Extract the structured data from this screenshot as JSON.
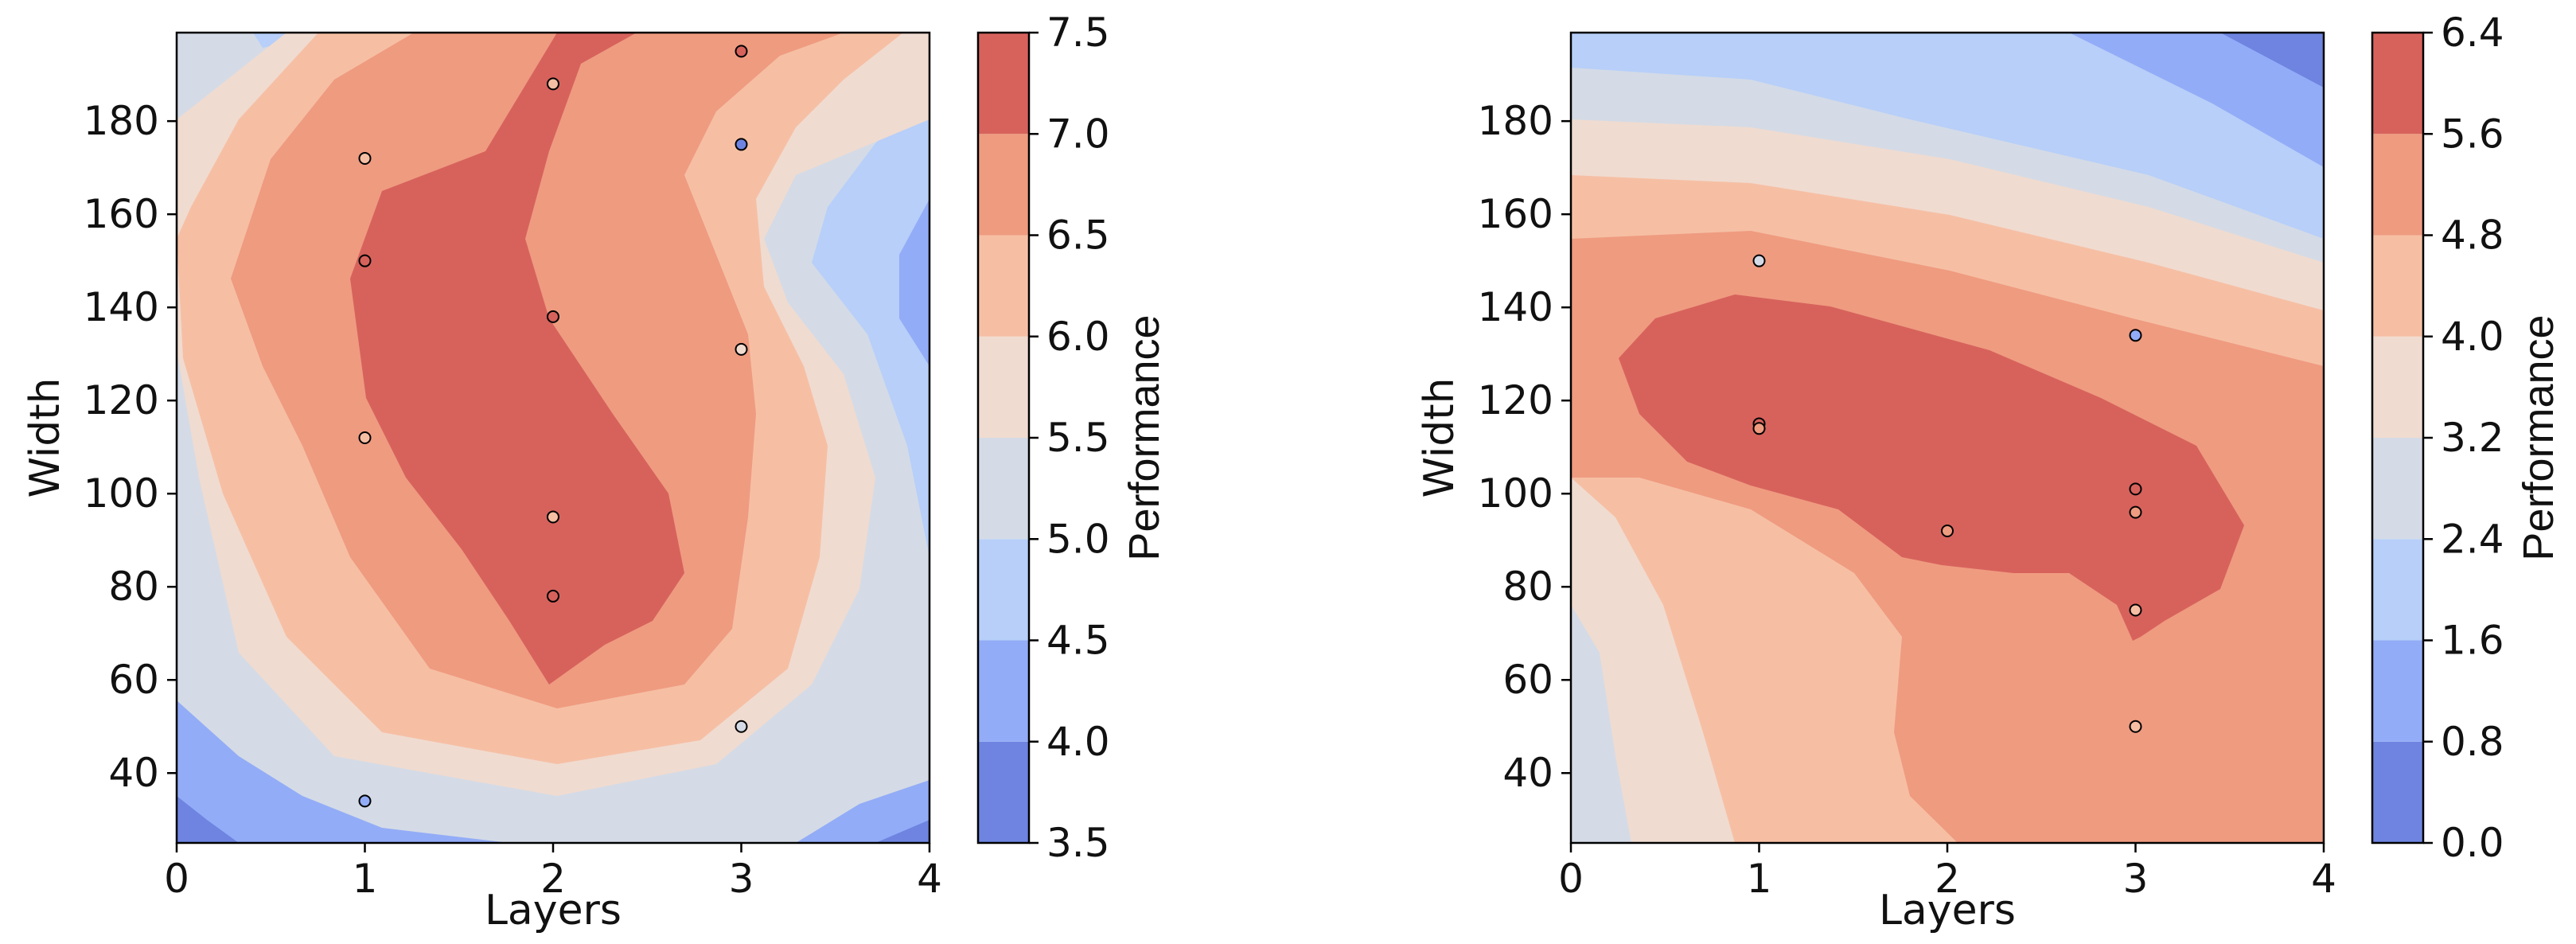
{
  "chart_data": [
    {
      "type": "contour",
      "xlabel": "Layers",
      "ylabel": "Width",
      "colorbar_label": "Performance",
      "xlim": [
        0,
        4
      ],
      "ylim": [
        25,
        199
      ],
      "xticks": [
        "0",
        "1",
        "2",
        "3",
        "4"
      ],
      "yticks": [
        "40",
        "60",
        "80",
        "100",
        "120",
        "140",
        "160",
        "180"
      ],
      "levels": [
        3.5,
        4.0,
        4.5,
        5.0,
        5.5,
        6.0,
        6.5,
        7.0,
        7.5
      ],
      "level_labels": [
        "3.5",
        "4.0",
        "4.5",
        "5.0",
        "5.5",
        "6.0",
        "6.5",
        "7.0",
        "7.5"
      ],
      "points": [
        {
          "x": 1,
          "y": 172,
          "value": 6.2
        },
        {
          "x": 1,
          "y": 150,
          "value": 7.2
        },
        {
          "x": 1,
          "y": 112,
          "value": 6.3
        },
        {
          "x": 1,
          "y": 34,
          "value": 4.0
        },
        {
          "x": 2,
          "y": 188,
          "value": 6.1
        },
        {
          "x": 2,
          "y": 138,
          "value": 7.3
        },
        {
          "x": 2,
          "y": 95,
          "value": 6.2
        },
        {
          "x": 2,
          "y": 78,
          "value": 7.0
        },
        {
          "x": 3,
          "y": 195,
          "value": 7.4
        },
        {
          "x": 3,
          "y": 175,
          "value": 3.9
        },
        {
          "x": 3,
          "y": 131,
          "value": 5.9
        },
        {
          "x": 3,
          "y": 50,
          "value": 5.3
        }
      ]
    },
    {
      "type": "contour",
      "xlabel": "Layers",
      "ylabel": "Width",
      "colorbar_label": "Performance",
      "xlim": [
        0,
        4
      ],
      "ylim": [
        25,
        199
      ],
      "xticks": [
        "0",
        "1",
        "2",
        "3",
        "4"
      ],
      "yticks": [
        "40",
        "60",
        "80",
        "100",
        "120",
        "140",
        "160",
        "180"
      ],
      "levels": [
        0.0,
        0.8,
        1.6,
        2.4,
        3.2,
        4.0,
        4.8,
        5.6,
        6.4
      ],
      "level_labels": [
        "0.0",
        "0.8",
        "1.6",
        "2.4",
        "3.2",
        "4.0",
        "4.8",
        "5.6",
        "6.4"
      ],
      "points": [
        {
          "x": 1,
          "y": 150,
          "value": 3.0
        },
        {
          "x": 1,
          "y": 115,
          "value": 5.9
        },
        {
          "x": 1,
          "y": 114,
          "value": 5.5
        },
        {
          "x": 2,
          "y": 92,
          "value": 5.0
        },
        {
          "x": 3,
          "y": 134,
          "value": 1.2
        },
        {
          "x": 3,
          "y": 101,
          "value": 6.3
        },
        {
          "x": 3,
          "y": 96,
          "value": 5.6
        },
        {
          "x": 3,
          "y": 75,
          "value": 4.0
        },
        {
          "x": 3,
          "y": 50,
          "value": 4.2
        }
      ]
    }
  ]
}
